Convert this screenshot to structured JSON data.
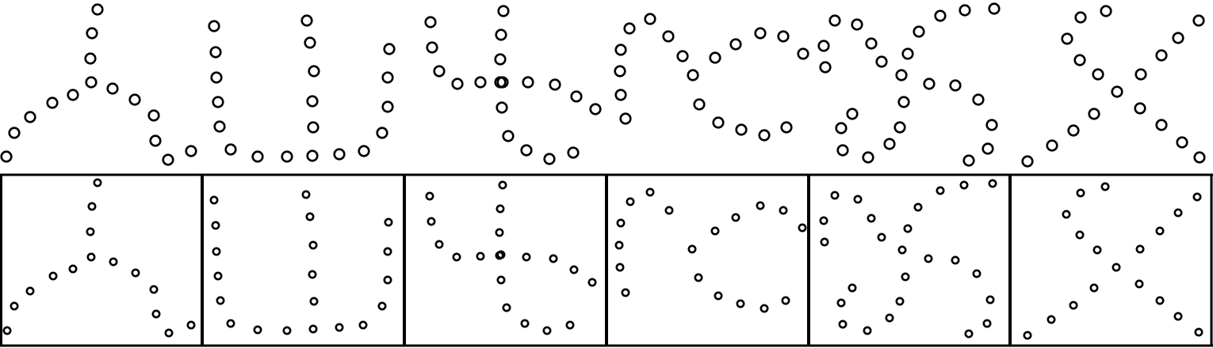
{
  "colors": {
    "background": "#ffffff",
    "stroke": "#000000"
  },
  "rows": [
    {
      "name": "top-row-figures",
      "boxed": false,
      "figures": [
        {
          "name": "figure-1",
          "points": [
            [
              8,
              198
            ],
            [
              18,
              168
            ],
            [
              38,
              148
            ],
            [
              66,
              130
            ],
            [
              92,
              120
            ],
            [
              115,
              104
            ],
            [
              142,
              112
            ],
            [
              170,
              126
            ],
            [
              194,
              146
            ],
            [
              196,
              178
            ],
            [
              212,
              202
            ],
            [
              241,
              191
            ],
            [
              114,
              74
            ],
            [
              116,
              42
            ],
            [
              123,
              12
            ]
          ]
        },
        {
          "name": "figure-2",
          "points": [
            [
              270,
              33
            ],
            [
              272,
              66
            ],
            [
              273,
              98
            ],
            [
              275,
              129
            ],
            [
              277,
              160
            ],
            [
              291,
              189
            ],
            [
              325,
              198
            ],
            [
              362,
              198
            ],
            [
              394,
              197
            ],
            [
              428,
              195
            ],
            [
              459,
              191
            ],
            [
              482,
              168
            ],
            [
              489,
              135
            ],
            [
              489,
              98
            ],
            [
              491,
              62
            ],
            [
              395,
              161
            ],
            [
              394,
              128
            ],
            [
              396,
              90
            ],
            [
              391,
              54
            ],
            [
              387,
              26
            ]
          ]
        },
        {
          "name": "figure-3",
          "points": [
            [
              543,
              28
            ],
            [
              545,
              60
            ],
            [
              554,
              90
            ],
            [
              577,
              106
            ],
            [
              606,
              104
            ],
            [
              634,
              104
            ],
            [
              666,
              104
            ],
            [
              700,
              107
            ],
            [
              727,
              122
            ],
            [
              751,
              138
            ],
            [
              633,
              136
            ],
            [
              631,
              104
            ],
            [
              631,
              75
            ],
            [
              632,
              44
            ],
            [
              635,
              14
            ],
            [
              641,
              172
            ],
            [
              664,
              190
            ],
            [
              693,
              201
            ],
            [
              723,
              193
            ]
          ]
        },
        {
          "name": "figure-4",
          "points": [
            [
              789,
              150
            ],
            [
              783,
              120
            ],
            [
              782,
              90
            ],
            [
              783,
              63
            ],
            [
              794,
              36
            ],
            [
              820,
              24
            ],
            [
              843,
              46
            ],
            [
              861,
              71
            ],
            [
              874,
              95
            ],
            [
              882,
              132
            ],
            [
              906,
              155
            ],
            [
              935,
              164
            ],
            [
              964,
              171
            ],
            [
              992,
              161
            ],
            [
              902,
              73
            ],
            [
              928,
              56
            ],
            [
              959,
              42
            ],
            [
              988,
              46
            ],
            [
              1013,
              68
            ]
          ]
        },
        {
          "name": "figure-5",
          "points": [
            [
              1039,
              58
            ],
            [
              1041,
              85
            ],
            [
              1053,
              26
            ],
            [
              1081,
              31
            ],
            [
              1099,
              55
            ],
            [
              1112,
              78
            ],
            [
              1137,
              95
            ],
            [
              1140,
              129
            ],
            [
              1135,
              161
            ],
            [
              1122,
              182
            ],
            [
              1095,
              199
            ],
            [
              1063,
              190
            ],
            [
              1061,
              162
            ],
            [
              1075,
              144
            ],
            [
              1145,
              68
            ],
            [
              1159,
              40
            ],
            [
              1186,
              20
            ],
            [
              1217,
              13
            ],
            [
              1254,
              11
            ],
            [
              1172,
              106
            ],
            [
              1205,
              108
            ],
            [
              1234,
              126
            ],
            [
              1251,
              158
            ],
            [
              1246,
              188
            ],
            [
              1222,
              203
            ]
          ]
        },
        {
          "name": "figure-6",
          "points": [
            [
              1296,
              204
            ],
            [
              1327,
              184
            ],
            [
              1354,
              165
            ],
            [
              1380,
              144
            ],
            [
              1409,
              116
            ],
            [
              1385,
              94
            ],
            [
              1362,
              76
            ],
            [
              1346,
              49
            ],
            [
              1363,
              22
            ],
            [
              1395,
              14
            ],
            [
              1438,
              137
            ],
            [
              1465,
              158
            ],
            [
              1491,
              180
            ],
            [
              1513,
              199
            ],
            [
              1439,
              94
            ],
            [
              1465,
              70
            ],
            [
              1486,
              48
            ],
            [
              1512,
              26
            ]
          ]
        }
      ]
    },
    {
      "name": "bottom-row-figures",
      "boxed": true,
      "figures": [
        {
          "name": "figure-1",
          "points": [
            [
              9,
              418
            ],
            [
              18,
              387
            ],
            [
              38,
              368
            ],
            [
              67,
              349
            ],
            [
              92,
              340
            ],
            [
              115,
              325
            ],
            [
              143,
              331
            ],
            [
              171,
              345
            ],
            [
              194,
              366
            ],
            [
              197,
              397
            ],
            [
              213,
              421
            ],
            [
              241,
              411
            ],
            [
              114,
              293
            ],
            [
              116,
              261
            ],
            [
              123,
              231
            ]
          ]
        },
        {
          "name": "figure-2",
          "points": [
            [
              270,
              253
            ],
            [
              272,
              285
            ],
            [
              273,
              318
            ],
            [
              275,
              349
            ],
            [
              278,
              380
            ],
            [
              291,
              409
            ],
            [
              325,
              417
            ],
            [
              362,
              418
            ],
            [
              395,
              416
            ],
            [
              428,
              414
            ],
            [
              458,
              411
            ],
            [
              482,
              387
            ],
            [
              489,
              354
            ],
            [
              489,
              318
            ],
            [
              490,
              281
            ],
            [
              396,
              381
            ],
            [
              394,
              347
            ],
            [
              395,
              310
            ],
            [
              391,
              274
            ],
            [
              386,
              246
            ]
          ]
        },
        {
          "name": "figure-3",
          "points": [
            [
              542,
              248
            ],
            [
              544,
              280
            ],
            [
              554,
              309
            ],
            [
              576,
              325
            ],
            [
              606,
              324
            ],
            [
              632,
              322
            ],
            [
              664,
              325
            ],
            [
              698,
              327
            ],
            [
              724,
              341
            ],
            [
              747,
              357
            ],
            [
              632,
              354
            ],
            [
              630,
              323
            ],
            [
              630,
              294
            ],
            [
              631,
              264
            ],
            [
              634,
              234
            ],
            [
              639,
              389
            ],
            [
              662,
              409
            ],
            [
              690,
              418
            ],
            [
              719,
              411
            ]
          ]
        },
        {
          "name": "figure-4",
          "points": [
            [
              789,
              370
            ],
            [
              782,
              338
            ],
            [
              781,
              310
            ],
            [
              783,
              282
            ],
            [
              795,
              255
            ],
            [
              820,
              243
            ],
            [
              844,
              266
            ],
            [
              873,
              315
            ],
            [
              881,
              351
            ],
            [
              906,
              374
            ],
            [
              934,
              384
            ],
            [
              964,
              390
            ],
            [
              991,
              380
            ],
            [
              902,
              292
            ],
            [
              928,
              275
            ],
            [
              959,
              260
            ],
            [
              988,
              266
            ],
            [
              1012,
              288
            ]
          ]
        },
        {
          "name": "figure-5",
          "points": [
            [
              1039,
              279
            ],
            [
              1040,
              306
            ],
            [
              1053,
              247
            ],
            [
              1082,
              252
            ],
            [
              1099,
              276
            ],
            [
              1112,
              300
            ],
            [
              1138,
              316
            ],
            [
              1142,
              350
            ],
            [
              1135,
              381
            ],
            [
              1122,
              402
            ],
            [
              1094,
              418
            ],
            [
              1063,
              410
            ],
            [
              1061,
              383
            ],
            [
              1075,
              364
            ],
            [
              1145,
              289
            ],
            [
              1158,
              262
            ],
            [
              1186,
              241
            ],
            [
              1216,
              234
            ],
            [
              1252,
              232
            ],
            [
              1171,
              327
            ],
            [
              1205,
              329
            ],
            [
              1232,
              346
            ],
            [
              1249,
              379
            ],
            [
              1245,
              409
            ],
            [
              1222,
              422
            ]
          ]
        },
        {
          "name": "figure-6",
          "points": [
            [
              1296,
              424
            ],
            [
              1326,
              404
            ],
            [
              1354,
              386
            ],
            [
              1380,
              364
            ],
            [
              1408,
              338
            ],
            [
              1384,
              316
            ],
            [
              1362,
              297
            ],
            [
              1345,
              271
            ],
            [
              1363,
              244
            ],
            [
              1394,
              236
            ],
            [
              1437,
              359
            ],
            [
              1463,
              380
            ],
            [
              1486,
              400
            ],
            [
              1512,
              420
            ],
            [
              1438,
              315
            ],
            [
              1463,
              292
            ],
            [
              1486,
              269
            ],
            [
              1510,
              249
            ]
          ]
        }
      ]
    }
  ]
}
